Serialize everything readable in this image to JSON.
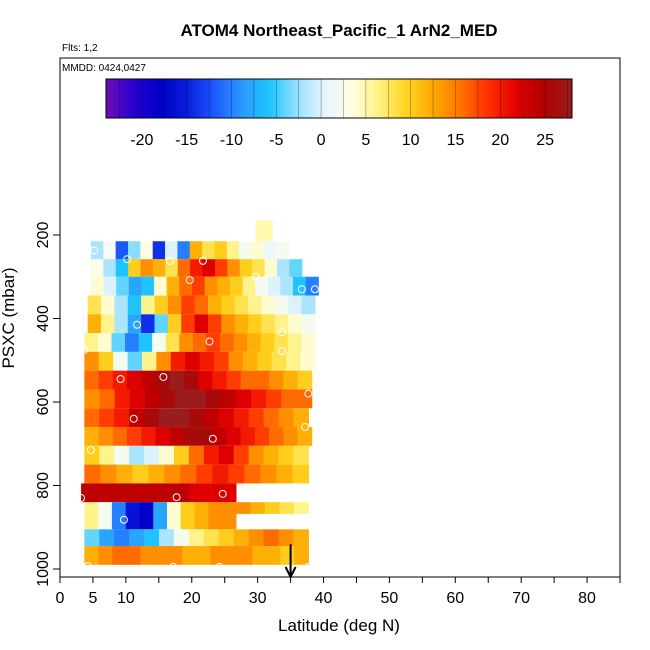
{
  "chart_data": {
    "type": "heatmap",
    "title": "ATOM4 Northeast_Pacific_1 ArN2_MED",
    "subtitle_flights": "Flts: 1,2",
    "subtitle_dates": "MMDD: 0424,0427",
    "xlabel": "Latitude (deg N)",
    "ylabel": "PSXC (mbar)",
    "xlim": [
      0,
      85
    ],
    "ylim": [
      1000,
      0
    ],
    "xticks": [
      0,
      5,
      10,
      20,
      30,
      40,
      50,
      60,
      70,
      80
    ],
    "xminorticks": [
      0,
      5,
      10,
      15,
      20,
      25,
      30,
      35,
      40,
      45,
      50,
      55,
      60,
      65,
      70,
      75,
      80,
      85
    ],
    "yticks": [
      200,
      400,
      600,
      800,
      1000
    ],
    "grid": false,
    "colorbar": {
      "placement": "top",
      "range": [
        -24,
        28
      ],
      "ticks": [
        -20,
        -15,
        -10,
        -5,
        0,
        5,
        10,
        15,
        20,
        25
      ],
      "colors": [
        "#6e0eb8",
        "#2b00d0",
        "#0000c8",
        "#0a1fe0",
        "#1e5cff",
        "#2a9bff",
        "#1ec8ff",
        "#9ce0ff",
        "#e8f6ff",
        "#ffffe0",
        "#fff07a",
        "#ffd21e",
        "#ffa600",
        "#ff7000",
        "#ff2a00",
        "#e00000",
        "#b00000",
        "#9a1c1c"
      ]
    },
    "arrow_marker": {
      "lat": 35,
      "pressure": 960
    },
    "rows": [
      {
        "p_top": 165,
        "p_bot": 215,
        "x0": 30,
        "x1": 32.5,
        "values": [
          5,
          5,
          5
        ]
      },
      {
        "p_top": 215,
        "p_bot": 258,
        "x0": 5,
        "x1": 35,
        "values": [
          -2,
          2,
          -12,
          -3,
          3,
          -14,
          0,
          -10,
          12,
          8,
          10,
          6,
          2,
          4,
          1,
          2
        ]
      },
      {
        "p_top": 258,
        "p_bot": 300,
        "x0": 5,
        "x1": 37,
        "values": [
          3,
          -2,
          -6,
          10,
          14,
          12,
          8,
          16,
          20,
          22,
          18,
          14,
          10,
          8,
          4,
          -2,
          -4
        ]
      },
      {
        "p_top": 300,
        "p_bot": 345,
        "x0": 5,
        "x1": 39.5,
        "values": [
          4,
          0,
          -4,
          -8,
          -6,
          4,
          12,
          16,
          18,
          14,
          12,
          10,
          6,
          2,
          0,
          -2,
          -6,
          -10
        ]
      },
      {
        "p_top": 345,
        "p_bot": 390,
        "x0": 4.5,
        "x1": 39,
        "values": [
          8,
          4,
          -2,
          -6,
          6,
          10,
          14,
          18,
          16,
          12,
          10,
          8,
          6,
          4,
          2,
          0,
          -2
        ]
      },
      {
        "p_top": 390,
        "p_bot": 435,
        "x0": 4.5,
        "x1": 39,
        "values": [
          12,
          6,
          -2,
          -8,
          -14,
          -4,
          10,
          18,
          22,
          18,
          14,
          12,
          10,
          8,
          6,
          4,
          2
        ]
      },
      {
        "p_top": 435,
        "p_bot": 480,
        "x0": 4,
        "x1": 39,
        "values": [
          6,
          4,
          -4,
          -10,
          -6,
          2,
          8,
          14,
          16,
          18,
          16,
          14,
          12,
          10,
          8,
          6,
          4
        ]
      },
      {
        "p_top": 480,
        "p_bot": 525,
        "x0": 4,
        "x1": 39,
        "values": [
          14,
          10,
          2,
          -4,
          6,
          14,
          20,
          22,
          20,
          18,
          14,
          12,
          10,
          8,
          6,
          4
        ]
      },
      {
        "p_top": 525,
        "p_bot": 570,
        "x0": 4,
        "x1": 38.5,
        "values": [
          16,
          18,
          20,
          22,
          24,
          26,
          28,
          26,
          22,
          20,
          18,
          16,
          16,
          14,
          12,
          10
        ]
      },
      {
        "p_top": 570,
        "p_bot": 615,
        "x0": 4,
        "x1": 38.5,
        "values": [
          14,
          16,
          20,
          22,
          24,
          26,
          28,
          28,
          26,
          24,
          22,
          20,
          18,
          16,
          16
        ]
      },
      {
        "p_top": 615,
        "p_bot": 660,
        "x0": 4,
        "x1": 38,
        "values": [
          16,
          18,
          20,
          24,
          26,
          28,
          28,
          26,
          24,
          22,
          20,
          18,
          16,
          14,
          12
        ]
      },
      {
        "p_top": 660,
        "p_bot": 705,
        "x0": 4,
        "x1": 38.5,
        "values": [
          12,
          14,
          16,
          18,
          20,
          22,
          24,
          26,
          26,
          24,
          22,
          20,
          18,
          16,
          14,
          12
        ]
      },
      {
        "p_top": 705,
        "p_bot": 750,
        "x0": 4,
        "x1": 38,
        "values": [
          10,
          6,
          2,
          -2,
          0,
          4,
          10,
          16,
          20,
          22,
          18,
          14,
          12,
          10,
          8
        ]
      },
      {
        "p_top": 750,
        "p_bot": 795,
        "x0": 4,
        "x1": 38,
        "values": [
          16,
          14,
          12,
          10,
          12,
          14,
          16,
          18,
          20,
          18,
          16,
          14,
          12,
          10
        ]
      },
      {
        "p_top": 795,
        "p_bot": 840,
        "x0": 3.5,
        "x1": 27,
        "values": [
          24,
          24,
          24,
          24,
          24,
          24,
          24,
          22,
          22,
          22
        ]
      },
      {
        "p_top": 840,
        "p_bot": 868,
        "x0": 27,
        "x1": 38,
        "values": [
          14,
          12,
          10,
          8,
          6
        ]
      },
      {
        "p_top": 840,
        "p_bot": 905,
        "x0": 4,
        "x1": 27,
        "values": [
          6,
          2,
          -10,
          -16,
          -18,
          -8,
          4,
          10,
          12,
          14,
          14
        ]
      },
      {
        "p_top": 905,
        "p_bot": 945,
        "x0": 4,
        "x1": 38,
        "values": [
          -4,
          -8,
          -10,
          -8,
          -6,
          -2,
          2,
          6,
          8,
          10,
          12,
          14,
          16,
          14,
          12
        ]
      },
      {
        "p_top": 945,
        "p_bot": 990,
        "x0": 4,
        "x1": 38,
        "values": [
          12,
          14,
          16,
          16,
          14,
          14,
          14,
          12,
          12,
          14,
          14,
          14,
          12,
          12,
          10,
          12
        ]
      }
    ],
    "points": [
      {
        "lat": 5.5,
        "pressure": 237
      },
      {
        "lat": 8,
        "pressure": 237
      },
      {
        "lat": 10.5,
        "pressure": 258
      },
      {
        "lat": 17,
        "pressure": 262
      },
      {
        "lat": 22,
        "pressure": 262
      },
      {
        "lat": 20,
        "pressure": 308
      },
      {
        "lat": 30,
        "pressure": 300
      },
      {
        "lat": 37,
        "pressure": 330
      },
      {
        "lat": 39,
        "pressure": 330
      },
      {
        "lat": 12,
        "pressure": 415
      },
      {
        "lat": 23,
        "pressure": 455
      },
      {
        "lat": 34,
        "pressure": 433
      },
      {
        "lat": 34,
        "pressure": 478
      },
      {
        "lat": 4,
        "pressure": 475
      },
      {
        "lat": 9.5,
        "pressure": 545
      },
      {
        "lat": 16,
        "pressure": 540
      },
      {
        "lat": 38,
        "pressure": 580
      },
      {
        "lat": 11.5,
        "pressure": 640
      },
      {
        "lat": 37.5,
        "pressure": 660
      },
      {
        "lat": 23.5,
        "pressure": 688
      },
      {
        "lat": 5,
        "pressure": 715
      },
      {
        "lat": 25,
        "pressure": 820
      },
      {
        "lat": 18,
        "pressure": 828
      },
      {
        "lat": 3.5,
        "pressure": 830
      },
      {
        "lat": 10,
        "pressure": 882
      },
      {
        "lat": 4.5,
        "pressure": 993
      },
      {
        "lat": 17.5,
        "pressure": 995
      },
      {
        "lat": 24.5,
        "pressure": 995
      },
      {
        "lat": 38,
        "pressure": 995
      }
    ]
  }
}
